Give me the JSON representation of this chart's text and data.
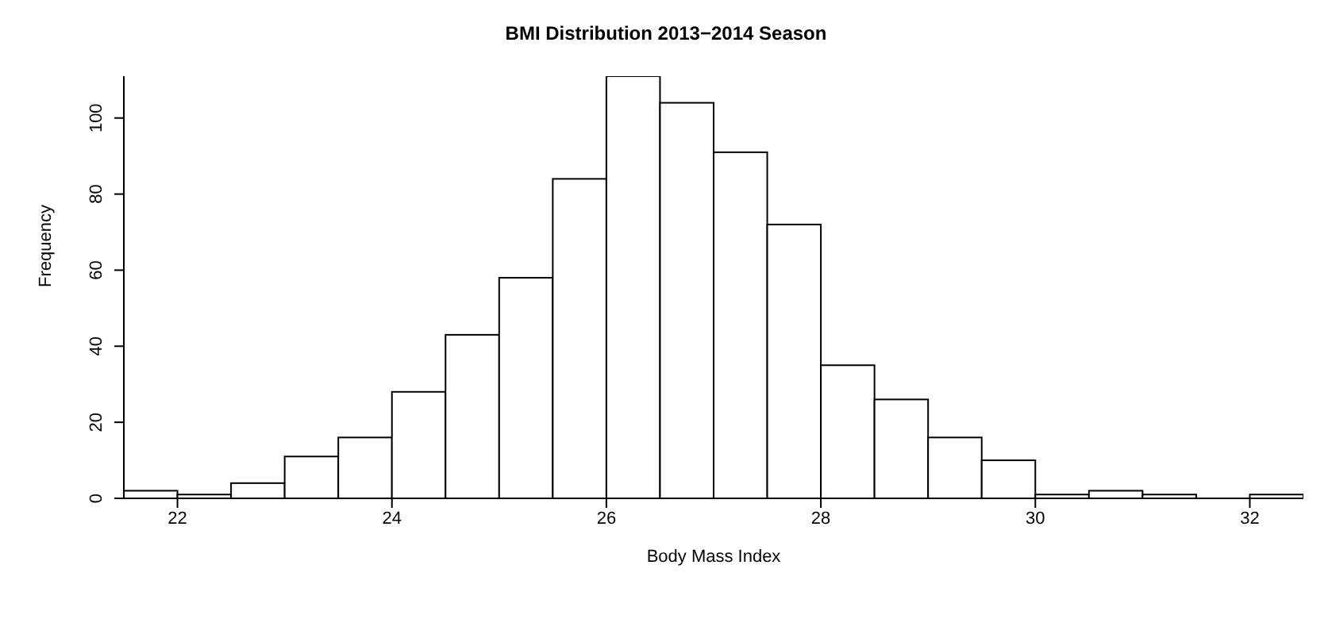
{
  "chart_data": {
    "type": "histogram",
    "title": "BMI Distribution 2013−2014 Season",
    "xlabel": "Body Mass Index",
    "ylabel": "Frequency",
    "bins": [
      21.5,
      22,
      22.5,
      23,
      23.5,
      24,
      24.5,
      25,
      25.5,
      26,
      26.5,
      27,
      27.5,
      28,
      28.5,
      29,
      29.5,
      30,
      30.5,
      31,
      31.5,
      32,
      32.5
    ],
    "values": [
      2,
      1,
      4,
      11,
      16,
      28,
      43,
      58,
      84,
      111,
      104,
      91,
      72,
      35,
      26,
      16,
      10,
      1,
      2,
      1,
      0,
      1
    ],
    "color": "#ffffff",
    "xlim": [
      21.5,
      32.5
    ],
    "xticks": [
      22,
      24,
      26,
      28,
      30,
      32
    ],
    "ylim": [
      0,
      111
    ],
    "yticks": [
      0,
      20,
      40,
      60,
      80,
      100
    ],
    "grid": false,
    "legend": false
  }
}
